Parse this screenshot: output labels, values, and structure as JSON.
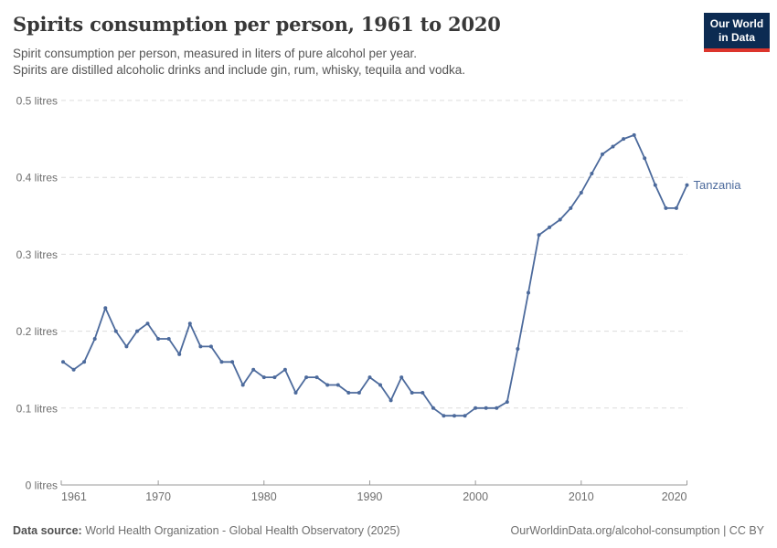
{
  "header": {
    "title": "Spirits consumption per person, 1961 to 2020",
    "subtitle_line1": "Spirit consumption per person, measured in liters of pure alcohol per year.",
    "subtitle_line2": "Spirits are distilled alcoholic drinks and include gin, rum, whisky, tequila and vodka.",
    "logo": {
      "line1": "Our World",
      "line2": "in Data",
      "bg_color": "#0c2b52",
      "bar_color": "#dc352c"
    }
  },
  "chart_data": {
    "type": "line",
    "title": "Spirits consumption per person, 1961 to 2020",
    "xlabel": "",
    "ylabel": "",
    "xlim": [
      1961,
      2020
    ],
    "ylim": [
      0,
      0.5
    ],
    "grid": "horizontal-dashed",
    "legend_position": "line-end-label",
    "x_ticks": [
      1961,
      1970,
      1980,
      1990,
      2000,
      2010,
      2020
    ],
    "y_ticks": [
      {
        "value": 0,
        "label": "0 litres"
      },
      {
        "value": 0.1,
        "label": "0.1 litres"
      },
      {
        "value": 0.2,
        "label": "0.2 litres"
      },
      {
        "value": 0.3,
        "label": "0.3 litres"
      },
      {
        "value": 0.4,
        "label": "0.4 litres"
      },
      {
        "value": 0.5,
        "label": "0.5 litres"
      }
    ],
    "x": [
      1961,
      1962,
      1963,
      1964,
      1965,
      1966,
      1967,
      1968,
      1969,
      1970,
      1971,
      1972,
      1973,
      1974,
      1975,
      1976,
      1977,
      1978,
      1979,
      1980,
      1981,
      1982,
      1983,
      1984,
      1985,
      1986,
      1987,
      1988,
      1989,
      1990,
      1991,
      1992,
      1993,
      1994,
      1995,
      1996,
      1997,
      1998,
      1999,
      2000,
      2001,
      2002,
      2003,
      2004,
      2005,
      2006,
      2007,
      2008,
      2009,
      2010,
      2011,
      2012,
      2013,
      2014,
      2015,
      2016,
      2017,
      2018,
      2019,
      2020
    ],
    "series": [
      {
        "name": "Tanzania",
        "color": "#4c6a9c",
        "values": [
          0.16,
          0.15,
          0.16,
          0.19,
          0.23,
          0.2,
          0.18,
          0.2,
          0.21,
          0.19,
          0.19,
          0.17,
          0.21,
          0.18,
          0.18,
          0.16,
          0.16,
          0.13,
          0.15,
          0.14,
          0.14,
          0.15,
          0.12,
          0.14,
          0.14,
          0.13,
          0.13,
          0.12,
          0.12,
          0.14,
          0.13,
          0.11,
          0.14,
          0.12,
          0.12,
          0.1,
          0.09,
          0.09,
          0.09,
          0.1,
          0.1,
          0.1,
          0.108,
          0.177,
          0.25,
          0.325,
          0.335,
          0.345,
          0.36,
          0.38,
          0.405,
          0.43,
          0.44,
          0.45,
          0.455,
          0.425,
          0.39,
          0.36,
          0.36,
          0.39
        ]
      }
    ],
    "axis_color": "#9a9a9a",
    "gridline_color": "#dcdcdc"
  },
  "footer": {
    "datasource_label": "Data source:",
    "datasource_text": " World Health Organization - Global Health Observatory (2025)",
    "link_text": "OurWorldinData.org/alcohol-consumption | CC BY"
  }
}
